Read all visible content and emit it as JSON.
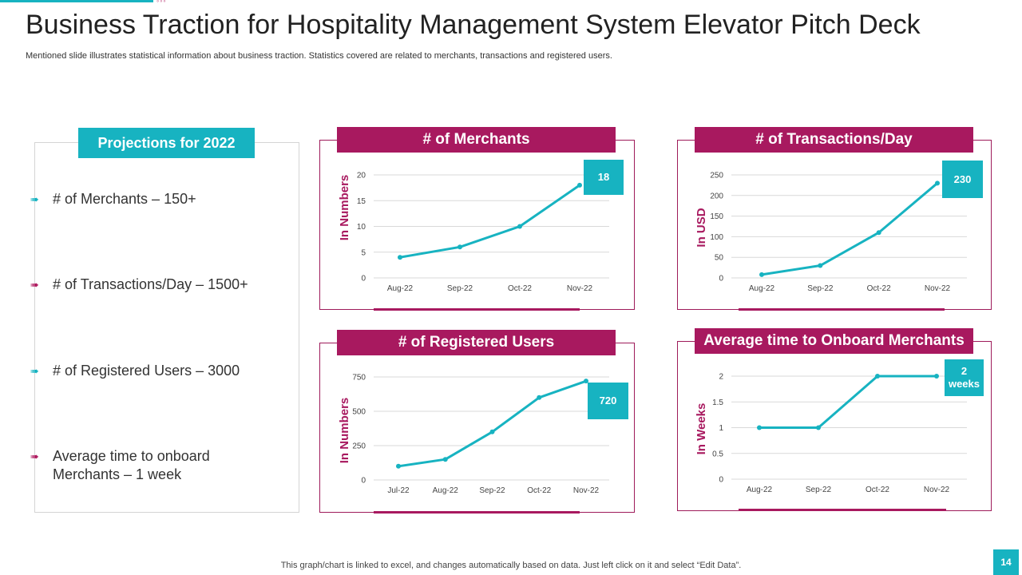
{
  "header": {
    "title": "Business Traction for Hospitality Management System Elevator Pitch Deck",
    "subtitle": "Mentioned slide illustrates statistical information about business traction. Statistics covered are related to merchants, transactions and registered users."
  },
  "projections": {
    "title": "Projections for 2022",
    "items": [
      {
        "text": "# of Merchants – 150+",
        "icon_color": "#17b3c1"
      },
      {
        "text": "# of Transactions/Day – 1500+",
        "icon_color": "#b01e62"
      },
      {
        "text": "# of Registered Users – 3000",
        "icon_color": "#17b3c1"
      },
      {
        "text": "Average time to onboard Merchants – 1 week",
        "icon_color": "#b01e62"
      }
    ]
  },
  "colors": {
    "accent": "#17b3c1",
    "brand": "#a8195f"
  },
  "chart_data": [
    {
      "type": "line",
      "title": "# of Merchants",
      "ylabel": "In Numbers",
      "categories": [
        "Aug-22",
        "Sep-22",
        "Oct-22",
        "Nov-22"
      ],
      "values": [
        4,
        6,
        10,
        18
      ],
      "yticks": [
        0,
        5,
        10,
        15,
        20
      ],
      "ylim": [
        0,
        20
      ],
      "callout": "18"
    },
    {
      "type": "line",
      "title": "# of Transactions/Day",
      "ylabel": "In USD",
      "categories": [
        "Aug-22",
        "Sep-22",
        "Oct-22",
        "Nov-22"
      ],
      "values": [
        8,
        30,
        110,
        230
      ],
      "yticks": [
        0,
        50,
        100,
        150,
        200,
        250
      ],
      "ylim": [
        0,
        250
      ],
      "callout": "230"
    },
    {
      "type": "line",
      "title": "# of Registered Users",
      "ylabel": "In Numbers",
      "categories": [
        "Jul-22",
        "Aug-22",
        "Sep-22",
        "Oct-22",
        "Nov-22"
      ],
      "values": [
        100,
        150,
        350,
        600,
        720
      ],
      "yticks": [
        0,
        250,
        500,
        750
      ],
      "ylim": [
        0,
        750
      ],
      "callout": "720"
    },
    {
      "type": "line",
      "title": "Average time to Onboard Merchants",
      "ylabel": "In Weeks",
      "categories": [
        "Aug-22",
        "Sep-22",
        "Oct-22",
        "Nov-22"
      ],
      "values": [
        1,
        1,
        2,
        2
      ],
      "yticks": [
        0,
        0.5,
        1,
        1.5,
        2
      ],
      "ylim": [
        0,
        2
      ],
      "callout": "2 weeks"
    }
  ],
  "footer": {
    "note": "This graph/chart is linked to excel,  and changes automatically based on data. Just left click on it and select “Edit Data”.",
    "page": "14"
  }
}
